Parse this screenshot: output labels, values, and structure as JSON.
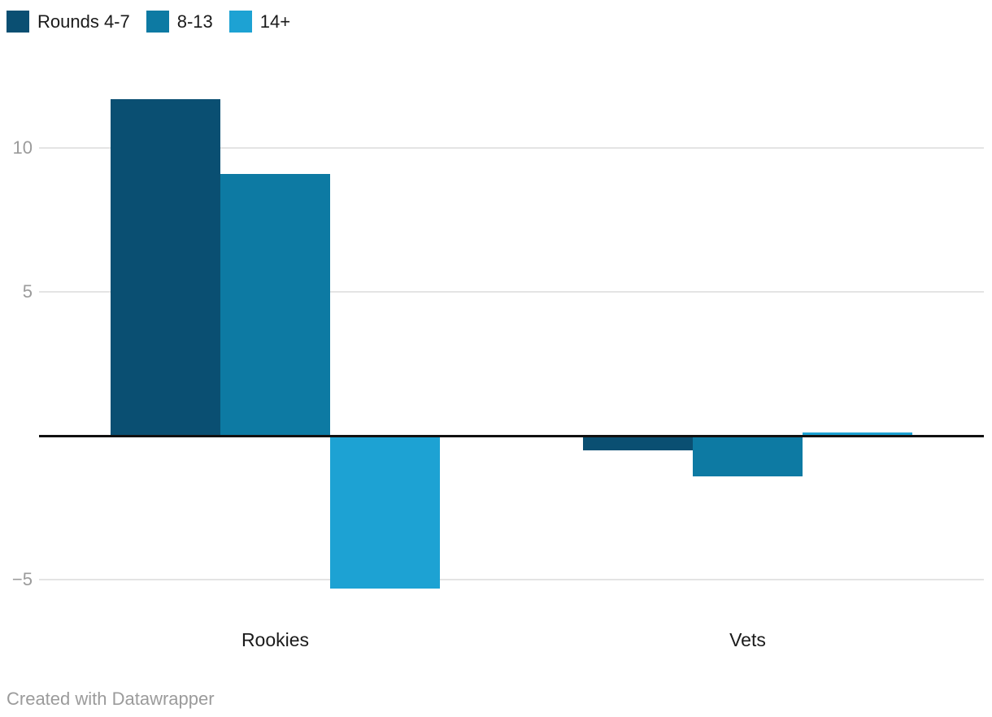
{
  "footer": {
    "credit": "Created with Datawrapper"
  },
  "colors": {
    "background": "#ffffff",
    "gridline": "#e4e4e4",
    "zero_baseline": "#111111",
    "axis_text": "#9b9b9b",
    "label_text": "#1a1a1a"
  },
  "chart_data": {
    "type": "bar",
    "title": "",
    "xlabel": "",
    "ylabel": "",
    "categories": [
      "Rookies",
      "Vets"
    ],
    "series": [
      {
        "name": "Rounds 4-7",
        "color": "#0a4f72",
        "values": [
          11.7,
          -0.5
        ]
      },
      {
        "name": "8-13",
        "color": "#0d7aa3",
        "values": [
          9.1,
          -1.4
        ]
      },
      {
        "name": "14+",
        "color": "#1da2d3",
        "values": [
          -5.3,
          0.1
        ]
      }
    ],
    "yticks": [
      10,
      5,
      -5
    ],
    "baseline": 0,
    "ylim": [
      -6.5,
      12.6
    ],
    "grid": true,
    "legend_position": "top-left"
  }
}
